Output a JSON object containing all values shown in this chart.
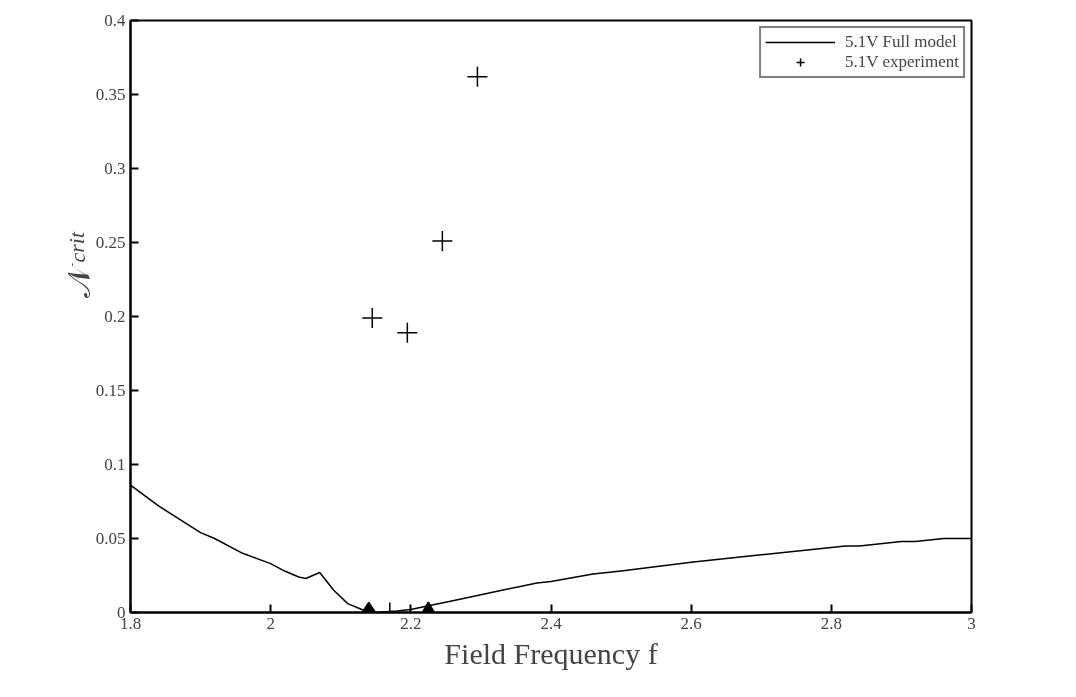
{
  "chart_data": {
    "type": "line",
    "xlabel": "Field Frequency f",
    "ylabel": "𝒩$_{crit}$",
    "xlim": [
      1.8,
      3
    ],
    "xticks": [
      1.8,
      2,
      2.2,
      2.4,
      2.6,
      2.8,
      3
    ],
    "ylim": [
      0,
      0.4
    ],
    "yticks": [
      0,
      0.05,
      0.1,
      0.15,
      0.2,
      0.25,
      0.3,
      0.35,
      0.4
    ],
    "grid": false,
    "legend": "top right",
    "series": [
      {
        "name": "5.1V Full model",
        "color": "#000000",
        "marker": "none",
        "line_style": "solid",
        "x": [
          1.8,
          1.84,
          1.9,
          1.92,
          1.96,
          2.0,
          2.02,
          2.04,
          2.05,
          2.07,
          2.09,
          2.11,
          2.13,
          2.15,
          2.18,
          2.2,
          2.22,
          2.26,
          2.3,
          2.32,
          2.38,
          2.4,
          2.46,
          2.5,
          2.6,
          2.7,
          2.8,
          2.82,
          2.84,
          2.9,
          2.92,
          2.96,
          3.0
        ],
        "values": [
          0.086,
          0.072,
          0.054,
          0.05,
          0.04,
          0.033,
          0.028,
          0.024,
          0.023,
          0.027,
          0.015,
          0.006,
          0.002,
          0.0,
          0.001,
          0.002,
          0.004,
          0.008,
          0.012,
          0.014,
          0.02,
          0.021,
          0.026,
          0.028,
          0.034,
          0.039,
          0.044,
          0.045,
          0.045,
          0.048,
          0.048,
          0.05,
          0.05
        ]
      },
      {
        "name": "5.1V experiment",
        "type": "scatter",
        "color": "#000000",
        "marker": "cross",
        "x": [
          2.145,
          2.195,
          2.245,
          2.295
        ],
        "values": [
          0.199,
          0.189,
          0.251,
          0.362
        ]
      },
      {
        "type": "scatter",
        "color": "#000000",
        "marker": "diamond",
        "x": [
          2.14
        ],
        "values": [
          0
        ]
      },
      {
        "type": "scatter",
        "color": "#000000",
        "marker": "cross",
        "x": [
          2.17
        ],
        "values": [
          0
        ]
      },
      {
        "type": "scatter",
        "color": "#000000",
        "marker": "triangle",
        "x": [
          2.225
        ],
        "values": [
          0
        ]
      }
    ]
  }
}
